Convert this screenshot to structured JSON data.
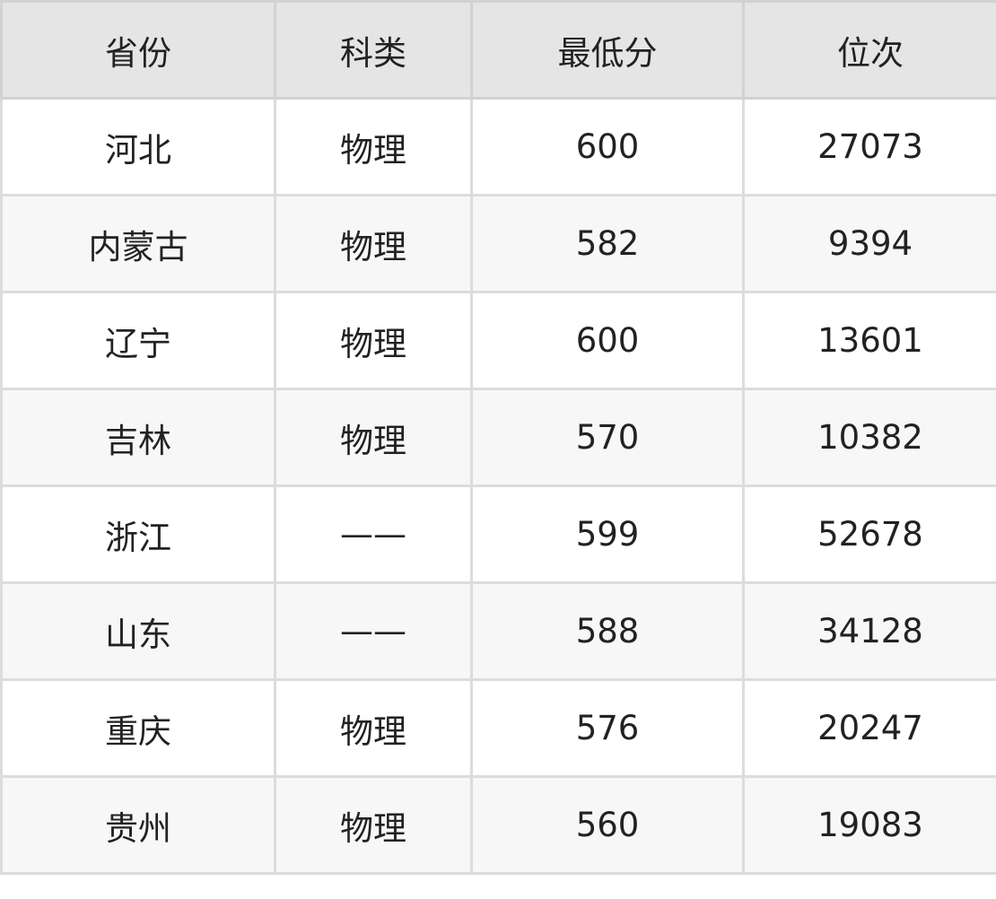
{
  "table": {
    "headers": [
      "省份",
      "科类",
      "最低分",
      "位次"
    ],
    "rows": [
      [
        "河北",
        "物理",
        "600",
        "27073"
      ],
      [
        "内蒙古",
        "物理",
        "582",
        "9394"
      ],
      [
        "辽宁",
        "物理",
        "600",
        "13601"
      ],
      [
        "吉林",
        "物理",
        "570",
        "10382"
      ],
      [
        "浙江",
        "——",
        "599",
        "52678"
      ],
      [
        "山东",
        "——",
        "588",
        "34128"
      ],
      [
        "重庆",
        "物理",
        "576",
        "20247"
      ],
      [
        "贵州",
        "物理",
        "560",
        "19083"
      ]
    ]
  },
  "colors": {
    "header_bg": "#e5e5e5",
    "alt_row_bg": "#f7f7f7",
    "border": "#dcdcdc",
    "text": "#222222"
  }
}
